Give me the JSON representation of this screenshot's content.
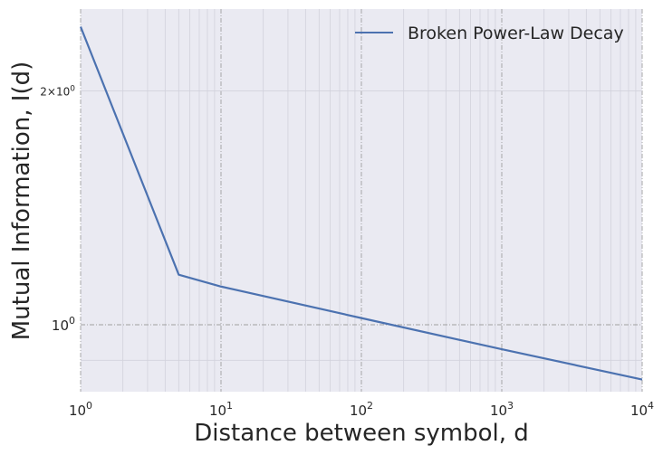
{
  "chart_data": {
    "type": "line",
    "xlabel": "Distance between symbol, d",
    "ylabel": "Mutual Information, I(d)",
    "xscale": "log",
    "yscale": "log",
    "xlim": [
      1,
      10000
    ],
    "ylim": [
      0.82,
      2.55
    ],
    "grid": true,
    "legend_position": "top-right",
    "x_ticks": [
      {
        "value": 1,
        "base": "10",
        "exp": "0"
      },
      {
        "value": 10,
        "base": "10",
        "exp": "1"
      },
      {
        "value": 100,
        "base": "10",
        "exp": "2"
      },
      {
        "value": 1000,
        "base": "10",
        "exp": "3"
      },
      {
        "value": 10000,
        "base": "10",
        "exp": "4"
      }
    ],
    "y_ticks": [
      {
        "value": 1,
        "base": "10",
        "exp": "0"
      },
      {
        "value": 2,
        "base": "2×10",
        "exp": "0"
      }
    ],
    "series": [
      {
        "name": "Broken Power-Law Decay",
        "color": "#4c72b0",
        "x": [
          1,
          5,
          10,
          100,
          1000,
          10000
        ],
        "y": [
          2.42,
          1.16,
          1.12,
          1.02,
          0.93,
          0.85
        ]
      }
    ],
    "background_color": "#eaeaf2"
  }
}
